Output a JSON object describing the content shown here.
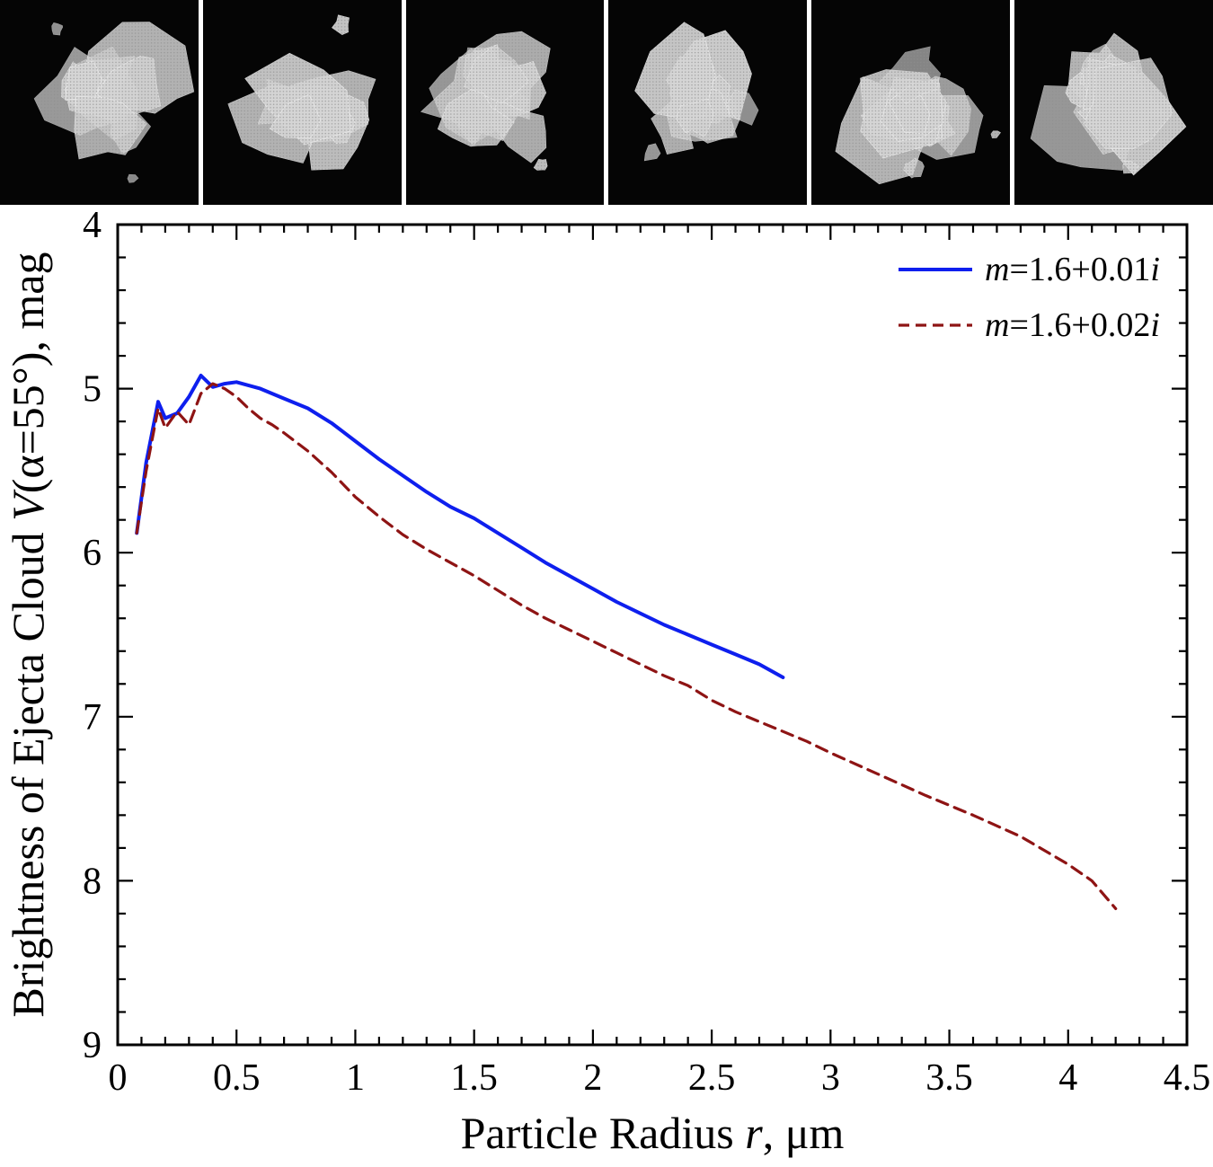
{
  "particle_strip": {
    "panel_count": 6,
    "content": "voxel-particle-render"
  },
  "chart_data": {
    "type": "line",
    "title": "",
    "xlabel_parts": [
      {
        "t": "Particle Radius ",
        "i": false
      },
      {
        "t": "r",
        "i": true
      },
      {
        "t": ", μm",
        "i": false
      }
    ],
    "ylabel_parts": [
      {
        "t": "Brightness of Ejecta Cloud ",
        "i": false
      },
      {
        "t": "V",
        "i": true
      },
      {
        "t": "(α=55°), mag",
        "i": false
      }
    ],
    "xlim": [
      0,
      4.5
    ],
    "ylim": [
      4,
      9
    ],
    "y_inverted": true,
    "grid": false,
    "x_major_ticks": [
      0,
      0.5,
      1,
      1.5,
      2,
      2.5,
      3,
      3.5,
      4,
      4.5
    ],
    "x_tick_labels": [
      "0",
      "0.5",
      "1",
      "1.5",
      "2",
      "2.5",
      "3",
      "3.5",
      "4",
      "4.5"
    ],
    "y_major_ticks": [
      4,
      5,
      6,
      7,
      8,
      9
    ],
    "y_tick_labels": [
      "4",
      "5",
      "6",
      "7",
      "8",
      "9"
    ],
    "x_minor_step": 0.1,
    "y_minor_step": 0.2,
    "legend": {
      "position": "top-right",
      "entries": [
        {
          "id": "m-1.6-0.01i",
          "parts": [
            {
              "t": "m",
              "i": true
            },
            {
              "t": "=1.6+0.01",
              "i": false
            },
            {
              "t": "i",
              "i": true
            }
          ],
          "color": "#0e1fee",
          "dash": "solid"
        },
        {
          "id": "m-1.6-0.02i",
          "parts": [
            {
              "t": "m",
              "i": true
            },
            {
              "t": "=1.6+0.02",
              "i": false
            },
            {
              "t": "i",
              "i": true
            }
          ],
          "color": "#8e1414",
          "dash": "dashed"
        }
      ]
    },
    "series": [
      {
        "name": "m=1.6+0.01i",
        "id": "blue-solid",
        "color": "#0e1fee",
        "style": "solid",
        "x": [
          0.08,
          0.12,
          0.17,
          0.2,
          0.25,
          0.3,
          0.35,
          0.4,
          0.45,
          0.5,
          0.55,
          0.6,
          0.65,
          0.7,
          0.8,
          0.9,
          1.0,
          1.1,
          1.2,
          1.3,
          1.4,
          1.5,
          1.6,
          1.7,
          1.8,
          1.9,
          2.0,
          2.1,
          2.2,
          2.3,
          2.4,
          2.5,
          2.6,
          2.7,
          2.8
        ],
        "y": [
          5.88,
          5.45,
          5.08,
          5.18,
          5.15,
          5.05,
          4.92,
          4.99,
          4.97,
          4.96,
          4.98,
          5.0,
          5.03,
          5.06,
          5.12,
          5.21,
          5.32,
          5.43,
          5.53,
          5.63,
          5.72,
          5.79,
          5.88,
          5.97,
          6.06,
          6.14,
          6.22,
          6.3,
          6.37,
          6.44,
          6.5,
          6.56,
          6.62,
          6.68,
          6.76
        ]
      },
      {
        "name": "m=1.6+0.02i",
        "id": "red-dashed",
        "color": "#8e1414",
        "style": "dashed",
        "x": [
          0.08,
          0.12,
          0.17,
          0.2,
          0.25,
          0.3,
          0.35,
          0.4,
          0.45,
          0.5,
          0.55,
          0.6,
          0.65,
          0.7,
          0.8,
          0.9,
          1.0,
          1.1,
          1.2,
          1.3,
          1.4,
          1.5,
          1.6,
          1.7,
          1.8,
          1.9,
          2.0,
          2.1,
          2.2,
          2.3,
          2.4,
          2.5,
          2.6,
          2.7,
          2.8,
          2.9,
          3.0,
          3.2,
          3.4,
          3.6,
          3.8,
          4.0,
          4.1,
          4.2
        ],
        "y": [
          5.88,
          5.5,
          5.12,
          5.24,
          5.14,
          5.22,
          5.03,
          4.97,
          5.0,
          5.05,
          5.12,
          5.18,
          5.22,
          5.27,
          5.38,
          5.51,
          5.66,
          5.78,
          5.89,
          5.98,
          6.06,
          6.14,
          6.23,
          6.32,
          6.4,
          6.47,
          6.54,
          6.61,
          6.68,
          6.75,
          6.81,
          6.9,
          6.97,
          7.03,
          7.09,
          7.15,
          7.22,
          7.35,
          7.48,
          7.6,
          7.73,
          7.9,
          8.0,
          8.17
        ]
      }
    ]
  }
}
